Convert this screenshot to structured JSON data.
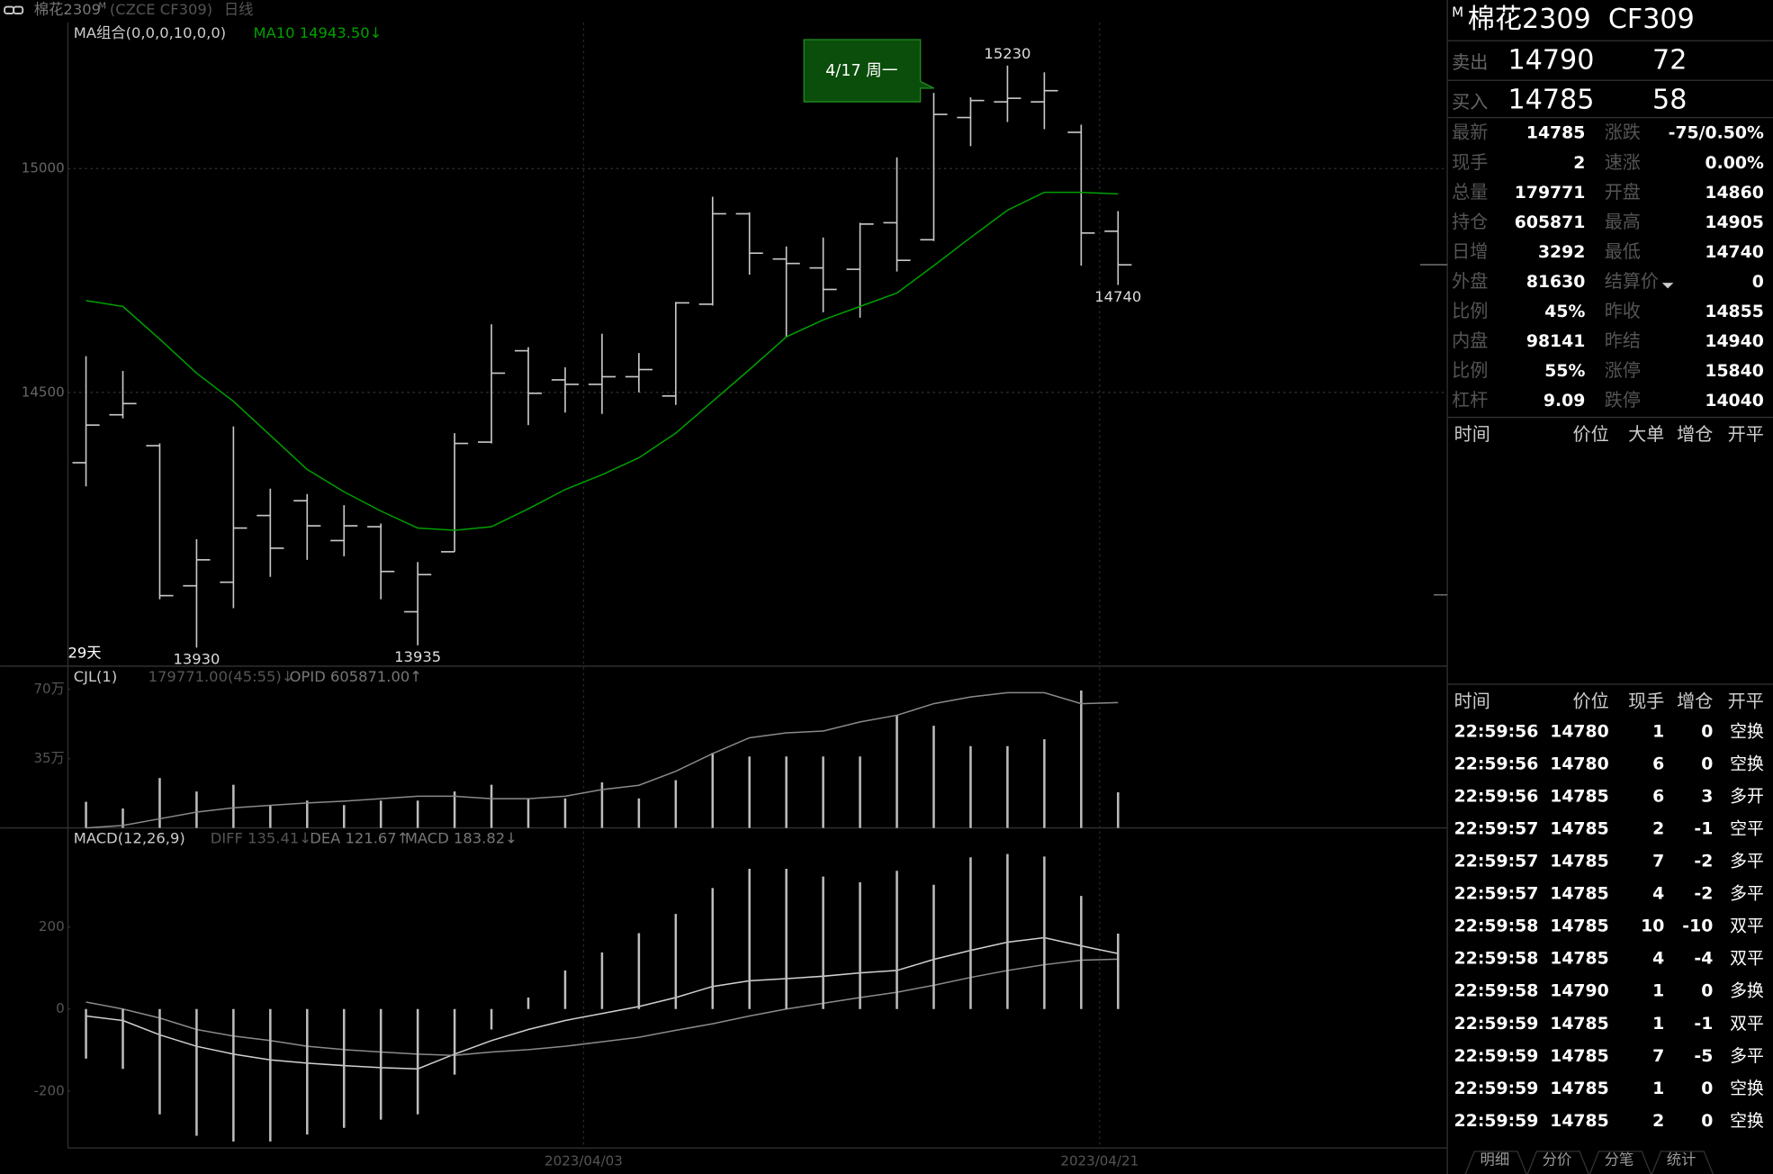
{
  "header": {
    "symbol": "棉花2309",
    "superscript": "M",
    "exchange": "(CZCE CF309)",
    "period": "日线"
  },
  "chart_data": [
    {
      "type": "ohlc",
      "title": "MA组合(0,0,0,10,0,0)",
      "days_label": "29天",
      "tooltip": "4/17 周一",
      "color": "#c8c8c8",
      "categories": [
        null,
        null,
        null,
        null,
        null,
        null,
        null,
        null,
        null,
        null,
        null,
        null,
        null,
        null,
        "2023/04/03",
        null,
        null,
        null,
        null,
        null,
        null,
        null,
        null,
        null,
        null,
        null,
        null,
        null,
        "2023/04/21"
      ],
      "open": [
        14343,
        14450,
        14381,
        14068,
        14076,
        14225,
        14258,
        14169,
        14200,
        14010,
        14144,
        14389,
        14593,
        14528,
        14518,
        14535,
        14492,
        14697,
        14899,
        14798,
        14778,
        14775,
        14879,
        14841,
        15114,
        15149,
        15149,
        15081,
        14860
      ],
      "high": [
        14581,
        14548,
        14386,
        14172,
        14424,
        14285,
        14273,
        14248,
        14207,
        14121,
        14409,
        14652,
        14601,
        14556,
        14631,
        14588,
        14702,
        14937,
        14902,
        14826,
        14846,
        14879,
        15025,
        15169,
        15159,
        15230,
        15215,
        15098,
        14905
      ],
      "low": [
        14290,
        14442,
        14038,
        13930,
        14018,
        14088,
        14126,
        14134,
        14038,
        13935,
        14144,
        14386,
        14427,
        14455,
        14452,
        14500,
        14472,
        14694,
        14763,
        14624,
        14679,
        14667,
        14770,
        14838,
        15050,
        15104,
        15088,
        14783,
        14740
      ],
      "close": [
        14427,
        14475,
        14046,
        14126,
        14197,
        14152,
        14202,
        14202,
        14100,
        14093,
        14386,
        14543,
        14498,
        14518,
        14535,
        14551,
        14700,
        14899,
        14811,
        14788,
        14730,
        14876,
        14795,
        15121,
        15152,
        15157,
        15174,
        14856,
        14785
      ],
      "series": [
        {
          "name": "MA10 14943.50↓",
          "type": "line",
          "color": "#00a000",
          "values": [
            14705,
            14692,
            14619,
            14543,
            14480,
            14404,
            14328,
            14278,
            14235,
            14197,
            14192,
            14200,
            14240,
            14283,
            14316,
            14354,
            14409,
            14480,
            14551,
            14624,
            14662,
            14692,
            14722,
            14783,
            14846,
            14907,
            14947,
            14947,
            14943.5
          ]
        }
      ],
      "annotations": [
        {
          "text": "15230",
          "value": 15230
        },
        {
          "text": "13930",
          "value": 13930
        },
        {
          "text": "13935",
          "value": 13935
        },
        {
          "text": "14740",
          "value": 14740
        }
      ],
      "ylim": [
        13891,
        15326
      ],
      "yticks": [
        14500,
        15000
      ],
      "grid": true
    },
    {
      "type": "bar",
      "title": "CJL(1)",
      "ylim": [
        0,
        800000
      ],
      "yticks": [
        {
          "value": 350000,
          "label": "35万"
        },
        {
          "value": 700000,
          "label": "70万"
        }
      ],
      "y2lim": [
        400000,
        660000
      ],
      "grid": false,
      "series": [
        {
          "name": "179771.00(45:55)↓",
          "type": "bar",
          "color": "#bdbdbd",
          "values": [
            132000,
            98000,
            252000,
            184000,
            218000,
            115000,
            138000,
            115000,
            138000,
            138000,
            184000,
            218000,
            149000,
            149000,
            230000,
            149000,
            241000,
            379000,
            361000,
            361000,
            361000,
            361000,
            568000,
            516000,
            413000,
            413000,
            448000,
            694000,
            179771
          ]
        },
        {
          "name": "OPID 605871.00↑",
          "type": "line",
          "axis": "y2",
          "color": "#8a8a8a",
          "values": [
            400000,
            404000,
            415000,
            426000,
            433000,
            437000,
            441000,
            444000,
            448000,
            452000,
            452000,
            448000,
            448000,
            452000,
            463000,
            470000,
            493000,
            522000,
            548000,
            556000,
            559000,
            574000,
            585000,
            604000,
            615000,
            622000,
            622000,
            604000,
            605871
          ]
        }
      ]
    },
    {
      "type": "bar",
      "title": "MACD(12,26,9)",
      "ylim": [
        -339,
        439
      ],
      "yticks": [
        -200,
        0,
        200
      ],
      "grid": false,
      "series": [
        {
          "name": "DIFF 135.41↓",
          "type": "line",
          "color": "#d0d0d0",
          "values": [
            -17,
            -28,
            -63,
            -91,
            -110,
            -124,
            -132,
            -138,
            -143,
            -146,
            -110,
            -77,
            -50,
            -28,
            -11,
            6,
            28,
            55,
            69,
            74,
            80,
            88,
            94,
            121,
            143,
            163,
            174,
            154,
            135.41
          ]
        },
        {
          "name": "DEA 121.67↑",
          "type": "line",
          "color": "#8a8a8a",
          "values": [
            17,
            0,
            -22,
            -50,
            -66,
            -77,
            -91,
            -99,
            -105,
            -110,
            -113,
            -105,
            -99,
            -91,
            -80,
            -69,
            -52,
            -36,
            -17,
            0,
            14,
            28,
            41,
            58,
            77,
            94,
            108,
            119,
            121.67
          ]
        },
        {
          "name": "MACD 183.82↓",
          "type": "bar",
          "color": "#bdbdbd",
          "values": [
            -121,
            -146,
            -257,
            -309,
            -323,
            -323,
            -306,
            -290,
            -270,
            -257,
            -160,
            -50,
            28,
            94,
            138,
            185,
            232,
            295,
            342,
            342,
            323,
            309,
            337,
            303,
            370,
            378,
            372,
            276,
            183.82
          ]
        }
      ]
    }
  ],
  "quote": {
    "superscript": "M",
    "title": "棉花2309  CF309",
    "sell": {
      "label": "卖出",
      "price": "14790",
      "qty": "72"
    },
    "buy": {
      "label": "买入",
      "price": "14785",
      "qty": "58"
    },
    "rows": [
      [
        "最新",
        "14785",
        "涨跌",
        "-75/0.50%"
      ],
      [
        "现手",
        "2",
        "速涨",
        "0.00%"
      ],
      [
        "总量",
        "179771",
        "开盘",
        "14860"
      ],
      [
        "持仓",
        "605871",
        "最高",
        "14905"
      ],
      [
        "日增",
        "3292",
        "最低",
        "14740"
      ],
      [
        "外盘",
        "81630",
        "结算价",
        "0"
      ],
      [
        "比例",
        "45%",
        "昨收",
        "14855"
      ],
      [
        "内盘",
        "98141",
        "昨结",
        "14940"
      ],
      [
        "比例",
        "55%",
        "涨停",
        "15840"
      ],
      [
        "杠杆",
        "9.09",
        "跌停",
        "14040"
      ]
    ]
  },
  "big_orders": {
    "columns": [
      "时间",
      "价位",
      "大单",
      "增仓",
      "开平"
    ]
  },
  "trades": {
    "columns": [
      "时间",
      "价位",
      "现手",
      "增仓",
      "开平"
    ],
    "rows": [
      [
        "22:59:56",
        "14780",
        "1",
        "0",
        "空换"
      ],
      [
        "22:59:56",
        "14780",
        "6",
        "0",
        "空换"
      ],
      [
        "22:59:56",
        "14785",
        "6",
        "3",
        "多开"
      ],
      [
        "22:59:57",
        "14785",
        "2",
        "-1",
        "空平"
      ],
      [
        "22:59:57",
        "14785",
        "7",
        "-2",
        "多平"
      ],
      [
        "22:59:57",
        "14785",
        "4",
        "-2",
        "多平"
      ],
      [
        "22:59:58",
        "14785",
        "10",
        "-10",
        "双平"
      ],
      [
        "22:59:58",
        "14785",
        "4",
        "-4",
        "双平"
      ],
      [
        "22:59:58",
        "14790",
        "1",
        "0",
        "多换"
      ],
      [
        "22:59:59",
        "14785",
        "1",
        "-1",
        "双平"
      ],
      [
        "22:59:59",
        "14785",
        "7",
        "-5",
        "多平"
      ],
      [
        "22:59:59",
        "14785",
        "1",
        "0",
        "空换"
      ],
      [
        "22:59:59",
        "14785",
        "2",
        "0",
        "空换"
      ]
    ]
  },
  "tabs": [
    "明细",
    "分价",
    "分笔",
    "统计"
  ]
}
